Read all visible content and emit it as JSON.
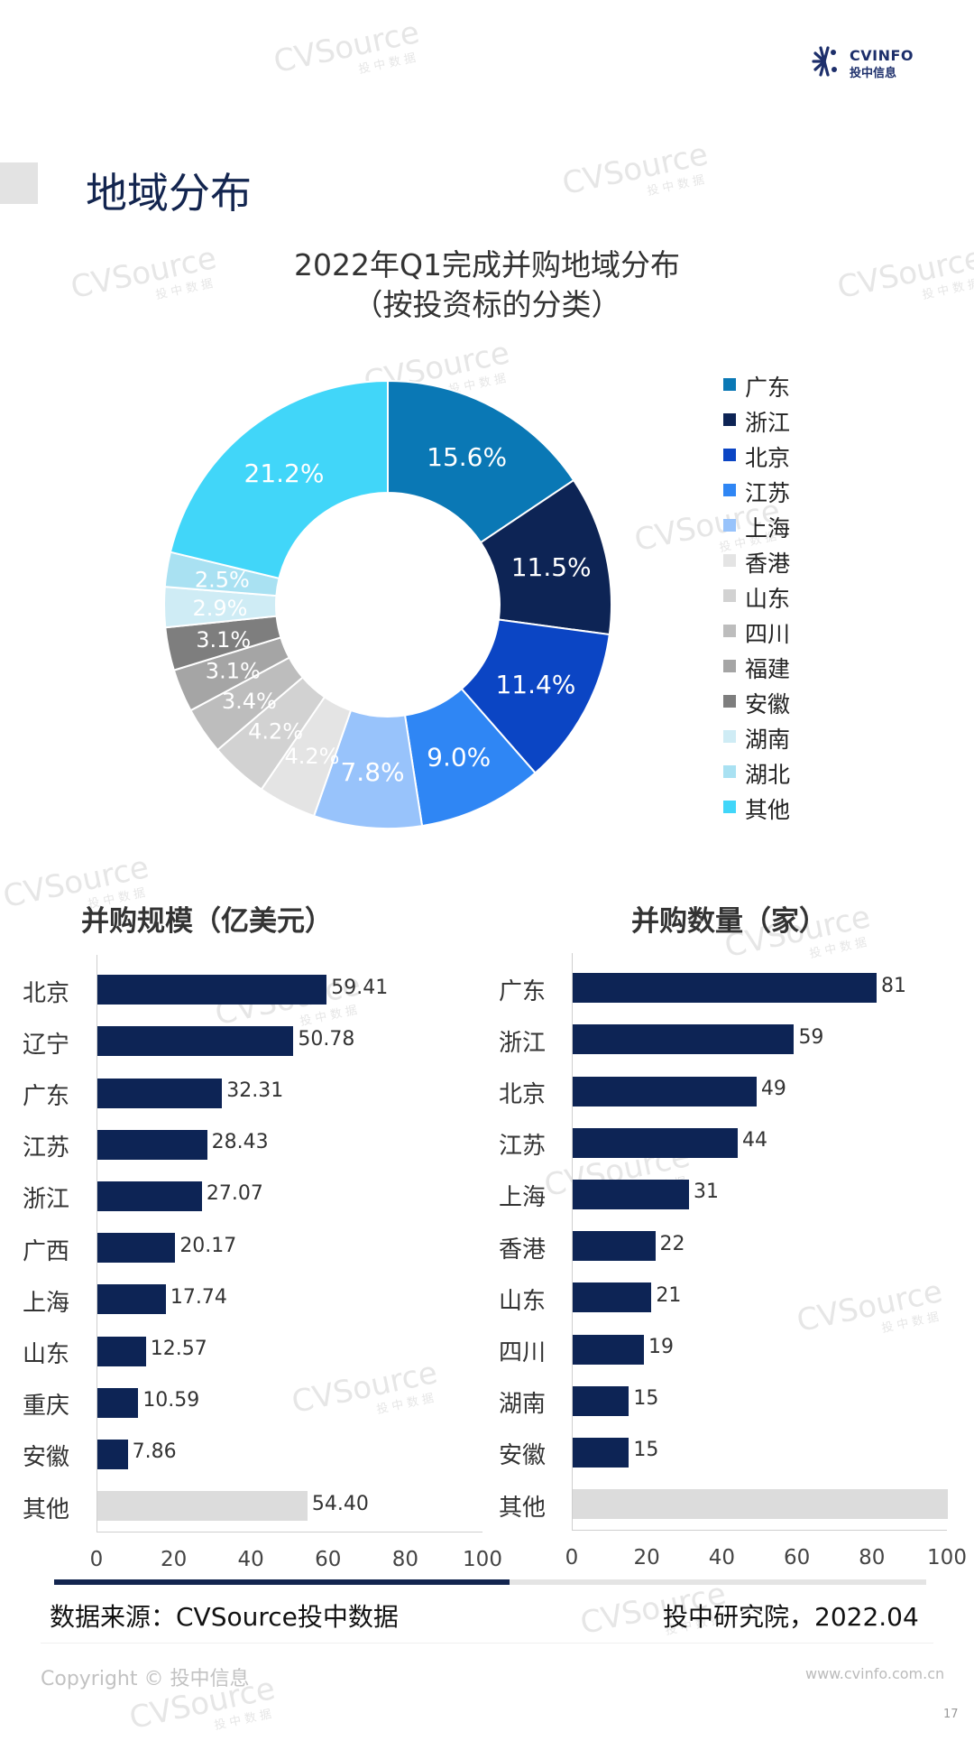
{
  "header": {
    "logo_line1": "CVINFO",
    "logo_line2": "投中信息",
    "page_title": "地域分布"
  },
  "watermark": {
    "text": "CVSource",
    "sub": "投 中 数 据"
  },
  "chart_data": [
    {
      "type": "pie",
      "title": "2022年Q1完成并购地域分布",
      "subtitle": "（按投资标的分类）",
      "categories": [
        "广东",
        "浙江",
        "北京",
        "江苏",
        "上海",
        "香港",
        "山东",
        "四川",
        "福建",
        "安徽",
        "湖南",
        "湖北",
        "其他"
      ],
      "values": [
        15.6,
        11.5,
        11.4,
        9.0,
        7.8,
        4.2,
        4.2,
        3.4,
        3.1,
        3.1,
        2.9,
        2.5,
        21.2
      ],
      "labels": [
        "15.6%",
        "11.5%",
        "11.4%",
        "9.0%",
        "7.8%",
        "4.2%",
        "4.2%",
        "3.4%",
        "3.1%",
        "3.1%",
        "2.9%",
        "2.5%",
        "21.2%"
      ],
      "colors": [
        "#0a78b5",
        "#0d2455",
        "#0b45c4",
        "#2f86f4",
        "#98c3fb",
        "#e4e4e4",
        "#d2d2d2",
        "#bdbdbd",
        "#a5a5a5",
        "#7e7e7e",
        "#cfecf5",
        "#a9e1f2",
        "#41d6f9"
      ],
      "label_colors": [
        "#ffffff",
        "#ffffff",
        "#ffffff",
        "#ffffff",
        "#ffffff",
        "#ffffff",
        "#ffffff",
        "#ffffff",
        "#ffffff",
        "#ffffff",
        "#ffffff",
        "#ffffff",
        "#ffffff"
      ],
      "hole": 0.5,
      "legend_position": "right"
    },
    {
      "type": "bar",
      "orientation": "horizontal",
      "title": "并购规模（亿美元）",
      "categories": [
        "北京",
        "辽宁",
        "广东",
        "江苏",
        "浙江",
        "广西",
        "上海",
        "山东",
        "重庆",
        "安徽",
        "其他"
      ],
      "values": [
        59.41,
        50.78,
        32.31,
        28.43,
        27.07,
        20.17,
        17.74,
        12.57,
        10.59,
        7.86,
        54.4
      ],
      "labels": [
        "59.41",
        "50.78",
        "32.31",
        "28.43",
        "27.07",
        "20.17",
        "17.74",
        "12.57",
        "10.59",
        "7.86",
        "54.40"
      ],
      "xlim": [
        0,
        100
      ],
      "ticks": [
        "0",
        "20",
        "40",
        "60",
        "80",
        "100"
      ],
      "bar_color": "#0d2455",
      "other_color": "#dcdcdc"
    },
    {
      "type": "bar",
      "orientation": "horizontal",
      "title": "并购数量（家）",
      "categories": [
        "广东",
        "浙江",
        "北京",
        "江苏",
        "上海",
        "香港",
        "山东",
        "四川",
        "湖南",
        "安徽",
        "其他"
      ],
      "values": [
        81,
        59,
        49,
        44,
        31,
        22,
        21,
        19,
        15,
        15,
        100
      ],
      "labels": [
        "81",
        "59",
        "49",
        "44",
        "31",
        "22",
        "21",
        "19",
        "15",
        "15",
        ""
      ],
      "xlim": [
        0,
        100
      ],
      "ticks": [
        "0",
        "20",
        "40",
        "60",
        "80",
        "100"
      ],
      "bar_color": "#0d2455",
      "other_color": "#dcdcdc"
    }
  ],
  "footer": {
    "source": "数据来源：CVSource投中数据",
    "institute": "投中研究院，2022.04",
    "copyright": "Copyright © 投中信息",
    "website": "www.cvinfo.com.cn",
    "page_number": "17"
  }
}
